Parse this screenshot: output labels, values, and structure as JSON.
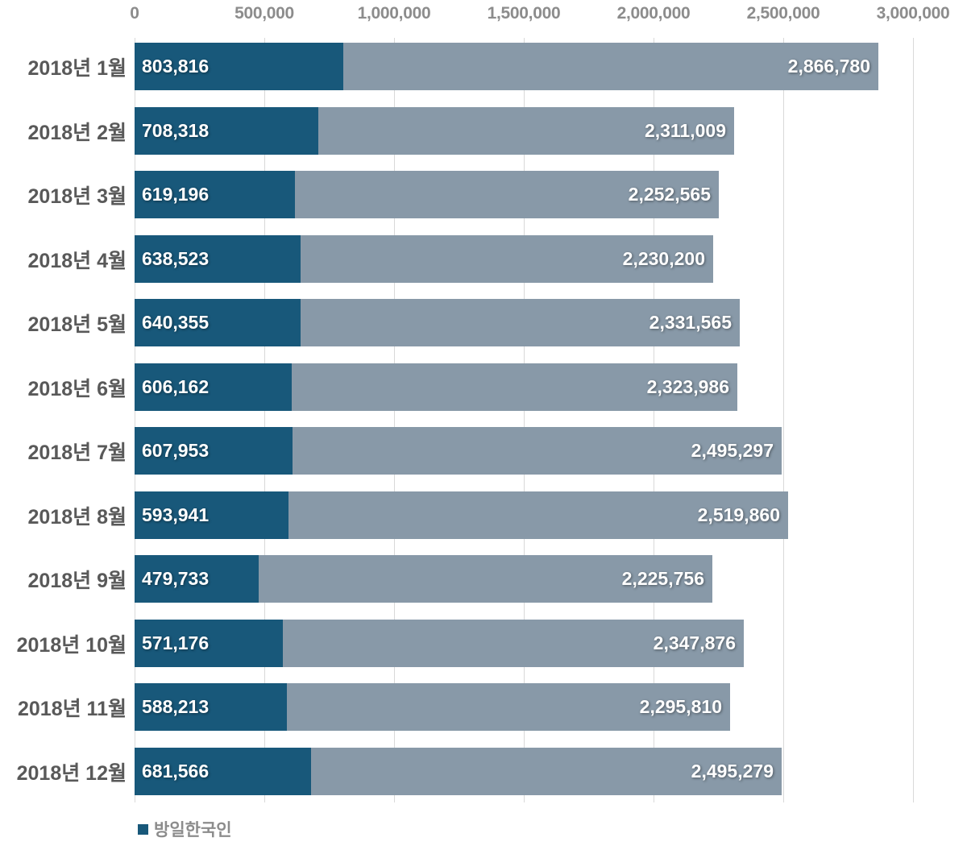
{
  "colors": {
    "korean_bar": "#18587a",
    "total_bar": "#8899a8",
    "gridline": "#d9d9d9",
    "category_text": "#595959",
    "axis_text": "#8c8c8c",
    "value_text": "#ffffff",
    "legend_text": "#8c8c8c",
    "background": "#ffffff"
  },
  "chart_data": {
    "type": "bar",
    "subtype": "horizontal-stacked",
    "orientation": "horizontal",
    "title": "",
    "categories": [
      "2018년 1월",
      "2018년 2월",
      "2018년 3월",
      "2018년 4월",
      "2018년 5월",
      "2018년 6월",
      "2018년 7월",
      "2018년 8월",
      "2018년 9월",
      "2018년 10월",
      "2018년 11월",
      "2018년 12월"
    ],
    "series": [
      {
        "name": "방일한국인",
        "color": "#18587a",
        "values": [
          803816,
          708318,
          619196,
          638523,
          640355,
          606162,
          607953,
          593941,
          479733,
          571176,
          588213,
          681566
        ],
        "value_labels": [
          "803,816",
          "708,318",
          "619,196",
          "638,523",
          "640,355",
          "606,162",
          "607,953",
          "593,941",
          "479,733",
          "571,176",
          "588,213",
          "681,566"
        ]
      }
    ],
    "bar_totals": {
      "color": "#8899a8",
      "values": [
        2866780,
        2311009,
        2252565,
        2230200,
        2331565,
        2323986,
        2495297,
        2519860,
        2225756,
        2347876,
        2295810,
        2495279
      ],
      "value_labels": [
        "2,866,780",
        "2,311,009",
        "2,252,565",
        "2,230,200",
        "2,331,565",
        "2,323,986",
        "2,495,297",
        "2,519,860",
        "2,225,756",
        "2,347,876",
        "2,295,810",
        "2,495,279"
      ]
    },
    "x_axis": {
      "position": "top",
      "min": 0,
      "max": 3000000,
      "tick_interval": 500000,
      "tick_values": [
        0,
        500000,
        1000000,
        1500000,
        2000000,
        2500000,
        3000000
      ],
      "tick_labels": [
        "0",
        "500,000",
        "1,000,000",
        "1,500,000",
        "2,000,000",
        "2,500,000",
        "3,000,000"
      ],
      "gridlines": true
    },
    "legend": {
      "position": "bottom-left",
      "items": [
        {
          "label": "방일한국인",
          "color": "#18587a"
        }
      ]
    }
  }
}
